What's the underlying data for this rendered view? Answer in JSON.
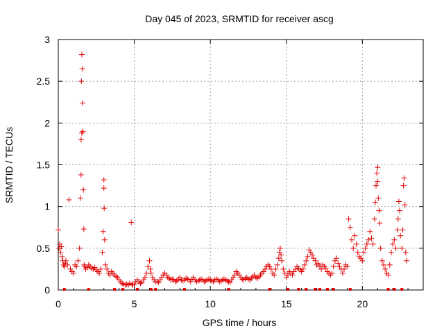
{
  "chart_data": {
    "type": "scatter",
    "title": "Day 045 of 2023, SRMTID for receiver ascg",
    "xlabel": "GPS time / hours",
    "ylabel": "SRMTID / TECUs",
    "xlim": [
      0,
      24
    ],
    "ylim": [
      0,
      3
    ],
    "xticks": [
      0,
      5,
      10,
      15,
      20
    ],
    "yticks": [
      0,
      0.5,
      1,
      1.5,
      2,
      2.5,
      3
    ],
    "xtick_labels": [
      "0",
      "5",
      "10",
      "15",
      "20"
    ],
    "ytick_labels": [
      "0",
      "0.5",
      "1",
      "1.5",
      "2",
      "2.5",
      "3"
    ],
    "grid": true,
    "marker": "+",
    "color": "#e00000",
    "series": [
      {
        "name": "SRMTID",
        "x": [
          0.0,
          0.05,
          0.1,
          0.15,
          0.2,
          0.25,
          0.3,
          0.35,
          0.4,
          0.45,
          0.5,
          0.6,
          0.7,
          0.8,
          0.9,
          1.0,
          1.1,
          1.2,
          1.3,
          1.4,
          1.45,
          1.5,
          1.5,
          1.52,
          1.55,
          1.55,
          1.58,
          1.6,
          1.62,
          1.65,
          1.68,
          1.7,
          1.75,
          1.8,
          1.9,
          2.0,
          2.1,
          2.2,
          2.3,
          2.4,
          2.5,
          2.6,
          2.7,
          2.8,
          2.9,
          2.95,
          3.0,
          3.0,
          3.02,
          3.05,
          3.1,
          3.2,
          3.3,
          3.4,
          3.5,
          3.6,
          3.7,
          3.8,
          3.9,
          4.0,
          4.1,
          4.2,
          4.3,
          4.4,
          4.5,
          4.6,
          4.7,
          4.8,
          4.85,
          4.9,
          5.0,
          5.1,
          5.2,
          5.3,
          5.4,
          5.5,
          5.6,
          5.7,
          5.8,
          5.9,
          6.0,
          6.05,
          6.1,
          6.2,
          6.3,
          6.4,
          6.5,
          6.6,
          6.7,
          6.8,
          6.9,
          7.0,
          7.1,
          7.2,
          7.3,
          7.4,
          7.5,
          7.6,
          7.7,
          7.8,
          7.9,
          8.0,
          8.1,
          8.2,
          8.3,
          8.4,
          8.5,
          8.6,
          8.7,
          8.8,
          8.9,
          9.0,
          9.1,
          9.2,
          9.3,
          9.4,
          9.5,
          9.6,
          9.7,
          9.8,
          9.9,
          10.0,
          10.1,
          10.2,
          10.3,
          10.4,
          10.5,
          10.6,
          10.7,
          10.8,
          10.9,
          11.0,
          11.1,
          11.2,
          11.3,
          11.4,
          11.5,
          11.6,
          11.7,
          11.8,
          11.9,
          12.0,
          12.1,
          12.2,
          12.3,
          12.4,
          12.5,
          12.6,
          12.7,
          12.8,
          12.9,
          13.0,
          13.1,
          13.2,
          13.3,
          13.4,
          13.5,
          13.6,
          13.7,
          13.8,
          13.9,
          14.0,
          14.1,
          14.2,
          14.3,
          14.4,
          14.5,
          14.55,
          14.6,
          14.65,
          14.7,
          14.8,
          14.9,
          15.0,
          15.1,
          15.2,
          15.3,
          15.4,
          15.5,
          15.6,
          15.7,
          15.8,
          15.9,
          16.0,
          16.1,
          16.2,
          16.3,
          16.4,
          16.5,
          16.6,
          16.7,
          16.8,
          16.9,
          17.0,
          17.1,
          17.2,
          17.3,
          17.4,
          17.5,
          17.6,
          17.7,
          17.8,
          17.9,
          18.0,
          18.1,
          18.2,
          18.3,
          18.4,
          18.5,
          18.6,
          18.7,
          18.8,
          18.9,
          19.0,
          19.1,
          19.2,
          19.3,
          19.4,
          19.5,
          19.6,
          19.7,
          19.8,
          19.9,
          20.0,
          20.1,
          20.2,
          20.3,
          20.4,
          20.5,
          20.6,
          20.7,
          20.8,
          20.85,
          20.9,
          20.95,
          21.0,
          21.0,
          21.05,
          21.1,
          21.15,
          21.2,
          21.3,
          21.4,
          21.5,
          21.6,
          21.7,
          21.8,
          21.9,
          22.0,
          22.1,
          22.2,
          22.3,
          22.35,
          22.4,
          22.45,
          22.5,
          22.6,
          22.65,
          22.7,
          22.75,
          22.8,
          22.85,
          22.9
        ],
        "y": [
          0.72,
          0.5,
          0.55,
          0.45,
          0.52,
          0.4,
          0.35,
          0.3,
          0.28,
          0.32,
          0.35,
          0.3,
          1.08,
          0.25,
          0.22,
          0.2,
          0.3,
          0.28,
          0.35,
          0.5,
          1.1,
          1.38,
          1.8,
          2.5,
          2.82,
          1.88,
          2.65,
          2.24,
          1.9,
          1.2,
          0.73,
          0.3,
          0.28,
          0.25,
          0.27,
          0.3,
          0.28,
          0.26,
          0.25,
          0.27,
          0.24,
          0.22,
          0.2,
          0.25,
          0.45,
          0.7,
          1.32,
          1.22,
          0.98,
          0.6,
          0.3,
          0.25,
          0.2,
          0.18,
          0.22,
          0.2,
          0.18,
          0.16,
          0.15,
          0.12,
          0.1,
          0.08,
          0.07,
          0.06,
          0.07,
          0.06,
          0.08,
          0.81,
          0.07,
          0.06,
          0.07,
          0.1,
          0.12,
          0.1,
          0.08,
          0.09,
          0.12,
          0.15,
          0.2,
          0.28,
          0.35,
          0.25,
          0.2,
          0.15,
          0.12,
          0.1,
          0.1,
          0.09,
          0.12,
          0.15,
          0.18,
          0.2,
          0.18,
          0.15,
          0.14,
          0.12,
          0.13,
          0.12,
          0.1,
          0.11,
          0.13,
          0.15,
          0.12,
          0.11,
          0.12,
          0.14,
          0.13,
          0.12,
          0.1,
          0.13,
          0.15,
          0.12,
          0.1,
          0.11,
          0.12,
          0.13,
          0.12,
          0.1,
          0.11,
          0.12,
          0.13,
          0.12,
          0.11,
          0.1,
          0.12,
          0.13,
          0.12,
          0.1,
          0.11,
          0.12,
          0.13,
          0.12,
          0.11,
          0.1,
          0.09,
          0.12,
          0.15,
          0.18,
          0.22,
          0.2,
          0.18,
          0.15,
          0.13,
          0.12,
          0.14,
          0.15,
          0.13,
          0.12,
          0.14,
          0.16,
          0.18,
          0.15,
          0.14,
          0.16,
          0.18,
          0.2,
          0.22,
          0.25,
          0.28,
          0.3,
          0.28,
          0.25,
          0.2,
          0.18,
          0.25,
          0.3,
          0.38,
          0.45,
          0.5,
          0.42,
          0.35,
          0.25,
          0.2,
          0.15,
          0.18,
          0.22,
          0.2,
          0.18,
          0.22,
          0.25,
          0.28,
          0.26,
          0.24,
          0.22,
          0.25,
          0.3,
          0.35,
          0.4,
          0.48,
          0.45,
          0.42,
          0.38,
          0.35,
          0.3,
          0.32,
          0.28,
          0.25,
          0.3,
          0.28,
          0.26,
          0.22,
          0.2,
          0.18,
          0.2,
          0.28,
          0.35,
          0.38,
          0.32,
          0.28,
          0.25,
          0.2,
          0.25,
          0.3,
          0.28,
          0.85,
          0.75,
          0.6,
          0.5,
          0.65,
          0.55,
          0.45,
          0.4,
          0.38,
          0.35,
          0.45,
          0.5,
          0.55,
          0.6,
          0.7,
          0.62,
          0.55,
          0.85,
          1.05,
          1.25,
          1.4,
          1.47,
          1.3,
          1.1,
          0.95,
          0.8,
          0.5,
          0.35,
          0.3,
          0.25,
          0.2,
          0.18,
          0.3,
          0.45,
          0.55,
          0.6,
          0.5,
          0.72,
          0.85,
          1.06,
          0.95,
          0.65,
          0.5,
          0.72,
          1.25,
          1.34,
          1.02,
          0.45,
          0.35
        ]
      }
    ],
    "rug_x": [
      0.4,
      2.0,
      3.7,
      4.25,
      5.2,
      6.1,
      6.4,
      8.3,
      11.2,
      13.9,
      15.1,
      15.8,
      16.3,
      16.9,
      17.2,
      17.7,
      18.1,
      19.2,
      21.7,
      22.1,
      22.6
    ]
  }
}
